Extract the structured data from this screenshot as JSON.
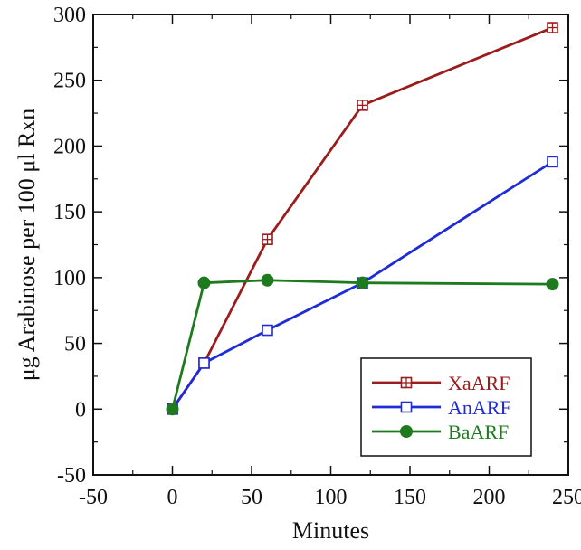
{
  "chart_data": {
    "type": "line",
    "title": "",
    "xlabel": "Minutes",
    "ylabel": "μg Arabinose per 100 μl Rxn",
    "xlim": [
      -50,
      250
    ],
    "ylim": [
      -50,
      300
    ],
    "xticks": [
      -50,
      0,
      50,
      100,
      150,
      200,
      250
    ],
    "yticks": [
      -50,
      0,
      50,
      100,
      150,
      200,
      250,
      300
    ],
    "grid": false,
    "legend_position": "bottom-right",
    "series": [
      {
        "name": "XaARF",
        "color": "#9b1c1c",
        "marker": "square-plus-open",
        "x": [
          0,
          20,
          60,
          120,
          240
        ],
        "y": [
          0,
          35,
          129,
          231,
          290
        ]
      },
      {
        "name": "AnARF",
        "color": "#1f2bd6",
        "marker": "square-open",
        "x": [
          0,
          20,
          60,
          120,
          240
        ],
        "y": [
          0,
          35,
          60,
          96,
          188
        ]
      },
      {
        "name": "BaARF",
        "color": "#1e7a1e",
        "marker": "circle-filled",
        "x": [
          0,
          20,
          60,
          120,
          240
        ],
        "y": [
          0,
          96,
          98,
          96,
          95
        ]
      }
    ]
  }
}
